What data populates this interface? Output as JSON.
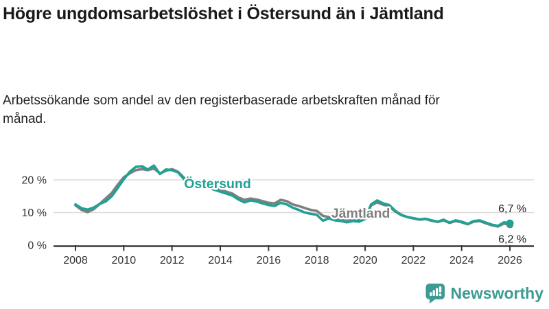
{
  "header": {
    "title": "Högre ungdomsarbetslöshet i Östersund än i Jämtland",
    "subtitle": "Arbetssökande som andel av den registerbaserade arbetskraften månad för månad."
  },
  "footer": {
    "brand": "Newsworthy",
    "logo_icon": "bar-chart-speech-bubble-icon"
  },
  "colors": {
    "ostersund": "#1FA295",
    "jamtland": "#7F7F7F",
    "axis": "#3A3A3A",
    "grid": "#DCDCDC",
    "label_text": "#1A1A1A",
    "tick_text": "#333333",
    "brand": "#3C9B93"
  },
  "chart_data": {
    "type": "line",
    "title": "Högre ungdomsarbetslöshet i Östersund än i Jämtland",
    "subtitle": "Arbetssökande som andel av den registerbaserade arbetskraften månad för månad.",
    "x_start": 2008,
    "x_step": 0.25,
    "xlim": [
      2008,
      2026
    ],
    "ylim": [
      0,
      26
    ],
    "grid": "horizontal",
    "y_ticks": [
      {
        "value": 0,
        "label": "0 %"
      },
      {
        "value": 10,
        "label": "10 %"
      },
      {
        "value": 20,
        "label": "20 %"
      }
    ],
    "x_ticks": [
      {
        "value": 2008,
        "label": "2008"
      },
      {
        "value": 2010,
        "label": "2010"
      },
      {
        "value": 2012,
        "label": "2012"
      },
      {
        "value": 2014,
        "label": "2014"
      },
      {
        "value": 2016,
        "label": "2016"
      },
      {
        "value": 2018,
        "label": "2018"
      },
      {
        "value": 2020,
        "label": "2020"
      },
      {
        "value": 2022,
        "label": "2022"
      },
      {
        "value": 2024,
        "label": "2024"
      },
      {
        "value": 2026,
        "label": "2026"
      }
    ],
    "series": [
      {
        "name": "Jämtland",
        "color_key": "jamtland",
        "end_label": "6,2 %",
        "end_value": 6.2,
        "dot_r": 5,
        "end_label_offset": [
          24,
          26
        ],
        "values": [
          12.2,
          10.8,
          10.1,
          11.0,
          12.6,
          14.3,
          16.0,
          18.5,
          20.8,
          22.0,
          23.0,
          23.3,
          23.0,
          23.5,
          22.0,
          22.8,
          23.3,
          22.5,
          20.6,
          20.0,
          19.5,
          18.8,
          18.2,
          17.6,
          17.0,
          16.4,
          15.8,
          14.6,
          13.9,
          14.3,
          14.0,
          13.5,
          13.0,
          12.8,
          13.9,
          13.5,
          12.5,
          12.0,
          11.4,
          10.8,
          10.5,
          9.0,
          8.6,
          8.3,
          8.0,
          7.8,
          7.9,
          7.8,
          8.4,
          12.2,
          13.1,
          12.4,
          11.9,
          10.3,
          9.2,
          8.6,
          8.2,
          7.8,
          8.0,
          7.5,
          7.1,
          7.6,
          6.8,
          7.4,
          7.0,
          6.4,
          7.2,
          7.4,
          6.7,
          6.1,
          5.7,
          6.6,
          6.2
        ]
      },
      {
        "name": "Östersund",
        "color_key": "ostersund",
        "end_label": "6,7 %",
        "end_value": 6.7,
        "dot_r": 5.5,
        "end_label_offset": [
          24,
          -16
        ],
        "values": [
          12.5,
          11.3,
          10.9,
          11.5,
          12.6,
          13.4,
          15.0,
          17.5,
          20.2,
          22.5,
          24.0,
          24.2,
          23.2,
          24.4,
          21.8,
          23.2,
          23.0,
          22.3,
          20.2,
          19.8,
          19.0,
          18.3,
          17.6,
          17.0,
          16.4,
          15.8,
          15.2,
          14.0,
          13.1,
          13.7,
          13.4,
          12.8,
          12.3,
          12.0,
          13.0,
          12.5,
          11.5,
          10.8,
          10.0,
          9.6,
          9.3,
          7.5,
          8.2,
          7.6,
          7.4,
          7.0,
          7.4,
          7.2,
          8.0,
          12.5,
          13.7,
          12.8,
          12.3,
          10.5,
          9.3,
          8.6,
          8.3,
          7.9,
          8.1,
          7.6,
          7.2,
          7.8,
          6.9,
          7.6,
          7.2,
          6.5,
          7.4,
          7.6,
          6.9,
          6.3,
          5.9,
          7.0,
          6.7
        ]
      }
    ],
    "series_labels": [
      {
        "text": "Östersund",
        "x": 2012.5,
        "y": 17.5,
        "color_key": "ostersund"
      },
      {
        "text": "Jämtland",
        "x": 2018.6,
        "y": 8.4,
        "color_key": "jamtland"
      }
    ],
    "legend_position": "inline-labels"
  }
}
